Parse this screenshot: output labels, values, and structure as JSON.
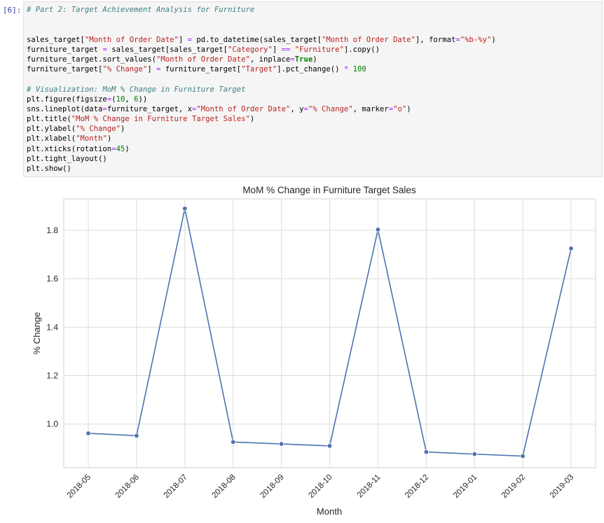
{
  "cell": {
    "prompt": "[6]:",
    "code_lines": [
      [
        {
          "t": "# Part 2: Target Achievement Analysis for Furniture",
          "c": "cm"
        }
      ],
      [],
      [],
      [
        {
          "t": "sales_target["
        },
        {
          "t": "\"Month of Order Date\"",
          "c": "st"
        },
        {
          "t": "] "
        },
        {
          "t": "=",
          "c": "op"
        },
        {
          "t": " pd.to_datetime(sales_target["
        },
        {
          "t": "\"Month of Order Date\"",
          "c": "st"
        },
        {
          "t": "], format"
        },
        {
          "t": "=",
          "c": "op"
        },
        {
          "t": "\"%b-%y\"",
          "c": "st"
        },
        {
          "t": ")"
        }
      ],
      [
        {
          "t": "furniture_target "
        },
        {
          "t": "=",
          "c": "op"
        },
        {
          "t": " sales_target[sales_target["
        },
        {
          "t": "\"Category\"",
          "c": "st"
        },
        {
          "t": "] "
        },
        {
          "t": "==",
          "c": "op"
        },
        {
          "t": " "
        },
        {
          "t": "\"Furniture\"",
          "c": "st"
        },
        {
          "t": "].copy()"
        }
      ],
      [
        {
          "t": "furniture_target.sort_values("
        },
        {
          "t": "\"Month of Order Date\"",
          "c": "st"
        },
        {
          "t": ", inplace"
        },
        {
          "t": "=",
          "c": "op"
        },
        {
          "t": "True",
          "c": "kw"
        },
        {
          "t": ")"
        }
      ],
      [
        {
          "t": "furniture_target["
        },
        {
          "t": "\"% Change\"",
          "c": "st"
        },
        {
          "t": "] "
        },
        {
          "t": "=",
          "c": "op"
        },
        {
          "t": " furniture_target["
        },
        {
          "t": "\"Target\"",
          "c": "st"
        },
        {
          "t": "].pct_change() "
        },
        {
          "t": "*",
          "c": "op"
        },
        {
          "t": " "
        },
        {
          "t": "100",
          "c": "nu"
        }
      ],
      [],
      [
        {
          "t": "# Visualization: MoM % Change in Furniture Target",
          "c": "cm"
        }
      ],
      [
        {
          "t": "plt.figure(figsize"
        },
        {
          "t": "=",
          "c": "op"
        },
        {
          "t": "("
        },
        {
          "t": "10",
          "c": "nu"
        },
        {
          "t": ", "
        },
        {
          "t": "6",
          "c": "nu"
        },
        {
          "t": "))"
        }
      ],
      [
        {
          "t": "sns.lineplot(data"
        },
        {
          "t": "=",
          "c": "op"
        },
        {
          "t": "furniture_target, x"
        },
        {
          "t": "=",
          "c": "op"
        },
        {
          "t": "\"Month of Order Date\"",
          "c": "st"
        },
        {
          "t": ", y"
        },
        {
          "t": "=",
          "c": "op"
        },
        {
          "t": "\"% Change\"",
          "c": "st"
        },
        {
          "t": ", marker"
        },
        {
          "t": "=",
          "c": "op"
        },
        {
          "t": "\"o\"",
          "c": "st"
        },
        {
          "t": ")"
        }
      ],
      [
        {
          "t": "plt.title("
        },
        {
          "t": "\"MoM % Change in Furniture Target Sales\"",
          "c": "st"
        },
        {
          "t": ")"
        }
      ],
      [
        {
          "t": "plt.ylabel("
        },
        {
          "t": "\"% Change\"",
          "c": "st"
        },
        {
          "t": ")"
        }
      ],
      [
        {
          "t": "plt.xlabel("
        },
        {
          "t": "\"Month\"",
          "c": "st"
        },
        {
          "t": ")"
        }
      ],
      [
        {
          "t": "plt.xticks(rotation"
        },
        {
          "t": "=",
          "c": "op"
        },
        {
          "t": "45",
          "c": "nu"
        },
        {
          "t": ")"
        }
      ],
      [
        {
          "t": "plt.tight_layout()"
        }
      ],
      [
        {
          "t": "plt.show()"
        }
      ]
    ]
  },
  "chart_data": {
    "type": "line",
    "title": "MoM % Change in Furniture Target Sales",
    "xlabel": "Month",
    "ylabel": "% Change",
    "categories": [
      "2018-05",
      "2018-06",
      "2018-07",
      "2018-08",
      "2018-09",
      "2018-10",
      "2018-11",
      "2018-12",
      "2019-01",
      "2019-02",
      "2019-03"
    ],
    "values": [
      0.962,
      0.952,
      1.89,
      0.926,
      0.918,
      0.91,
      1.803,
      0.885,
      0.876,
      0.868,
      1.725
    ],
    "ylim": [
      0.82,
      1.93
    ],
    "yticks": [
      "1.0",
      "1.2",
      "1.4",
      "1.6",
      "1.8"
    ],
    "grid": true,
    "color": "#4c72b0"
  }
}
